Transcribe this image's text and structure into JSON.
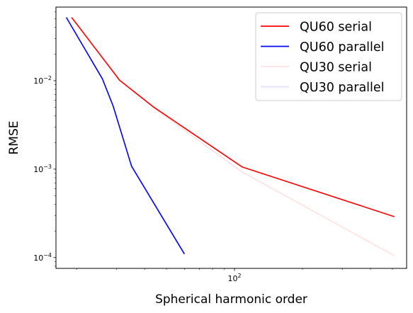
{
  "chart_data": {
    "type": "line",
    "xlabel": "Spherical harmonic order",
    "ylabel": "RMSE",
    "xscale": "log",
    "yscale": "log",
    "xlim": [
      16.2,
      578
    ],
    "ylim": [
      7.55e-05,
      0.068
    ],
    "x_tick_labels": [
      {
        "value": 100,
        "base": "10",
        "exp": "2"
      }
    ],
    "y_tick_labels": [
      {
        "value": 0.0001,
        "base": "10",
        "exp": "−4"
      },
      {
        "value": 0.001,
        "base": "10",
        "exp": "−3"
      },
      {
        "value": 0.01,
        "base": "10",
        "exp": "−2"
      }
    ],
    "grid": false,
    "legend_position": "top-right",
    "series": [
      {
        "name": "QU60 serial",
        "color": "#ff0000",
        "opacity": 1.0,
        "x": [
          19,
          31,
          44,
          108,
          510
        ],
        "y": [
          0.052,
          0.0101,
          0.005,
          0.00106,
          0.00029
        ]
      },
      {
        "name": "QU60 parallel",
        "color": "#0000ff",
        "opacity": 1.0,
        "x": [
          18,
          26,
          29,
          35,
          60
        ],
        "y": [
          0.052,
          0.0105,
          0.0052,
          0.00108,
          0.00011
        ]
      },
      {
        "name": "QU30 serial",
        "color": "#ff0000",
        "opacity": 0.12,
        "x": [
          19,
          31,
          44,
          108,
          510
        ],
        "y": [
          0.052,
          0.0101,
          0.0049,
          0.00093,
          0.000105
        ]
      },
      {
        "name": "QU30 parallel",
        "color": "#0000ff",
        "opacity": 0.12,
        "x": [
          18,
          26,
          29,
          35,
          60
        ],
        "y": [
          0.052,
          0.0105,
          0.0052,
          0.00108,
          0.000108
        ]
      }
    ]
  }
}
